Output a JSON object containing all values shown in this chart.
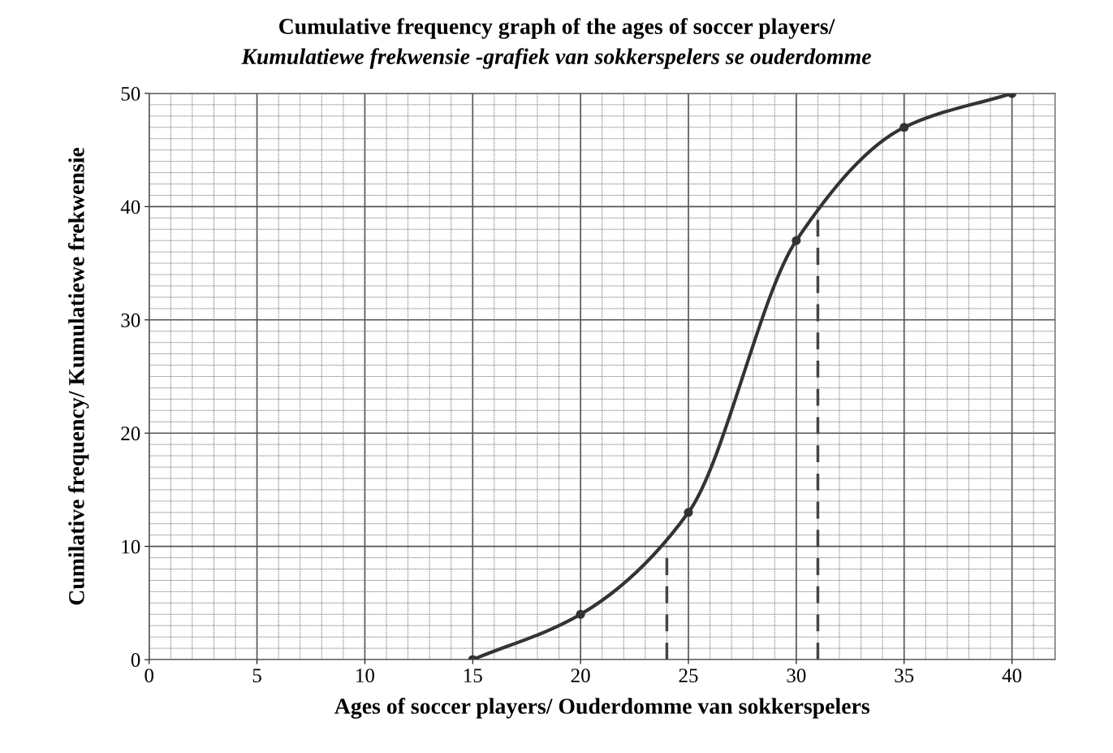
{
  "chart_data": {
    "type": "line",
    "title": "Cumulative frequency graph of the ages of soccer players/",
    "subtitle": "Kumulatiewe frekwensie -grafiek van sokkerspelers se ouderdomme",
    "xlabel": "Ages of soccer players/ Ouderdomme van sokkerspelers",
    "ylabel": "Cumilative frequency/ Kumulatiewe frekwensie",
    "series": [
      {
        "color": "#333333",
        "x": [
          15,
          20,
          25,
          30,
          35,
          40
        ],
        "values": [
          0,
          4,
          13,
          37,
          47,
          50
        ],
        "marker": "circle",
        "line_style": "solid"
      },
      {
        "color": "#444444",
        "x": [
          24,
          24
        ],
        "values": [
          0,
          10
        ],
        "marker": "none",
        "line_style": "dashed"
      },
      {
        "color": "#444444",
        "x": [
          31,
          31
        ],
        "values": [
          0,
          40
        ],
        "marker": "none",
        "line_style": "dashed"
      }
    ],
    "xlim": [
      0,
      42
    ],
    "ylim": [
      0,
      50
    ],
    "xticks": [
      0,
      5,
      10,
      15,
      20,
      25,
      30,
      35,
      40
    ],
    "yticks": [
      0,
      10,
      20,
      30,
      40,
      50
    ],
    "grid": true
  }
}
